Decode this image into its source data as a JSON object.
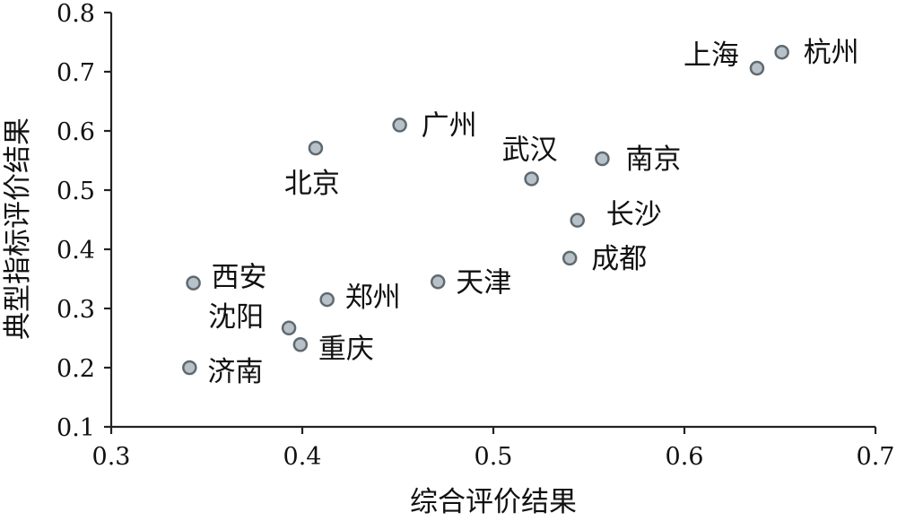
{
  "chart_data": {
    "type": "scatter",
    "title": "",
    "xlabel": "综合评价结果",
    "ylabel": "典型指标评价结果",
    "xlim": [
      0.3,
      0.7
    ],
    "ylim": [
      0.1,
      0.8
    ],
    "xticks": [
      "0.3",
      "0.4",
      "0.5",
      "0.6",
      "0.7"
    ],
    "yticks": [
      "0.1",
      "0.2",
      "0.3",
      "0.4",
      "0.5",
      "0.6",
      "0.7",
      "0.8"
    ],
    "grid": false,
    "legend": "none",
    "marker_color": "#b9c1c8",
    "marker_edge_color": "#5f6970",
    "points": [
      {
        "label": "杭州",
        "x": 0.651,
        "y": 0.733
      },
      {
        "label": "上海",
        "x": 0.638,
        "y": 0.706
      },
      {
        "label": "广州",
        "x": 0.451,
        "y": 0.61
      },
      {
        "label": "北京",
        "x": 0.407,
        "y": 0.571
      },
      {
        "label": "南京",
        "x": 0.557,
        "y": 0.553
      },
      {
        "label": "武汉",
        "x": 0.52,
        "y": 0.519
      },
      {
        "label": "长沙",
        "x": 0.544,
        "y": 0.449
      },
      {
        "label": "成都",
        "x": 0.54,
        "y": 0.385
      },
      {
        "label": "天津",
        "x": 0.471,
        "y": 0.345
      },
      {
        "label": "西安",
        "x": 0.343,
        "y": 0.343
      },
      {
        "label": "郑州",
        "x": 0.413,
        "y": 0.315
      },
      {
        "label": "沈阳",
        "x": 0.393,
        "y": 0.267
      },
      {
        "label": "重庆",
        "x": 0.399,
        "y": 0.239
      },
      {
        "label": "济南",
        "x": 0.341,
        "y": 0.2
      }
    ]
  }
}
